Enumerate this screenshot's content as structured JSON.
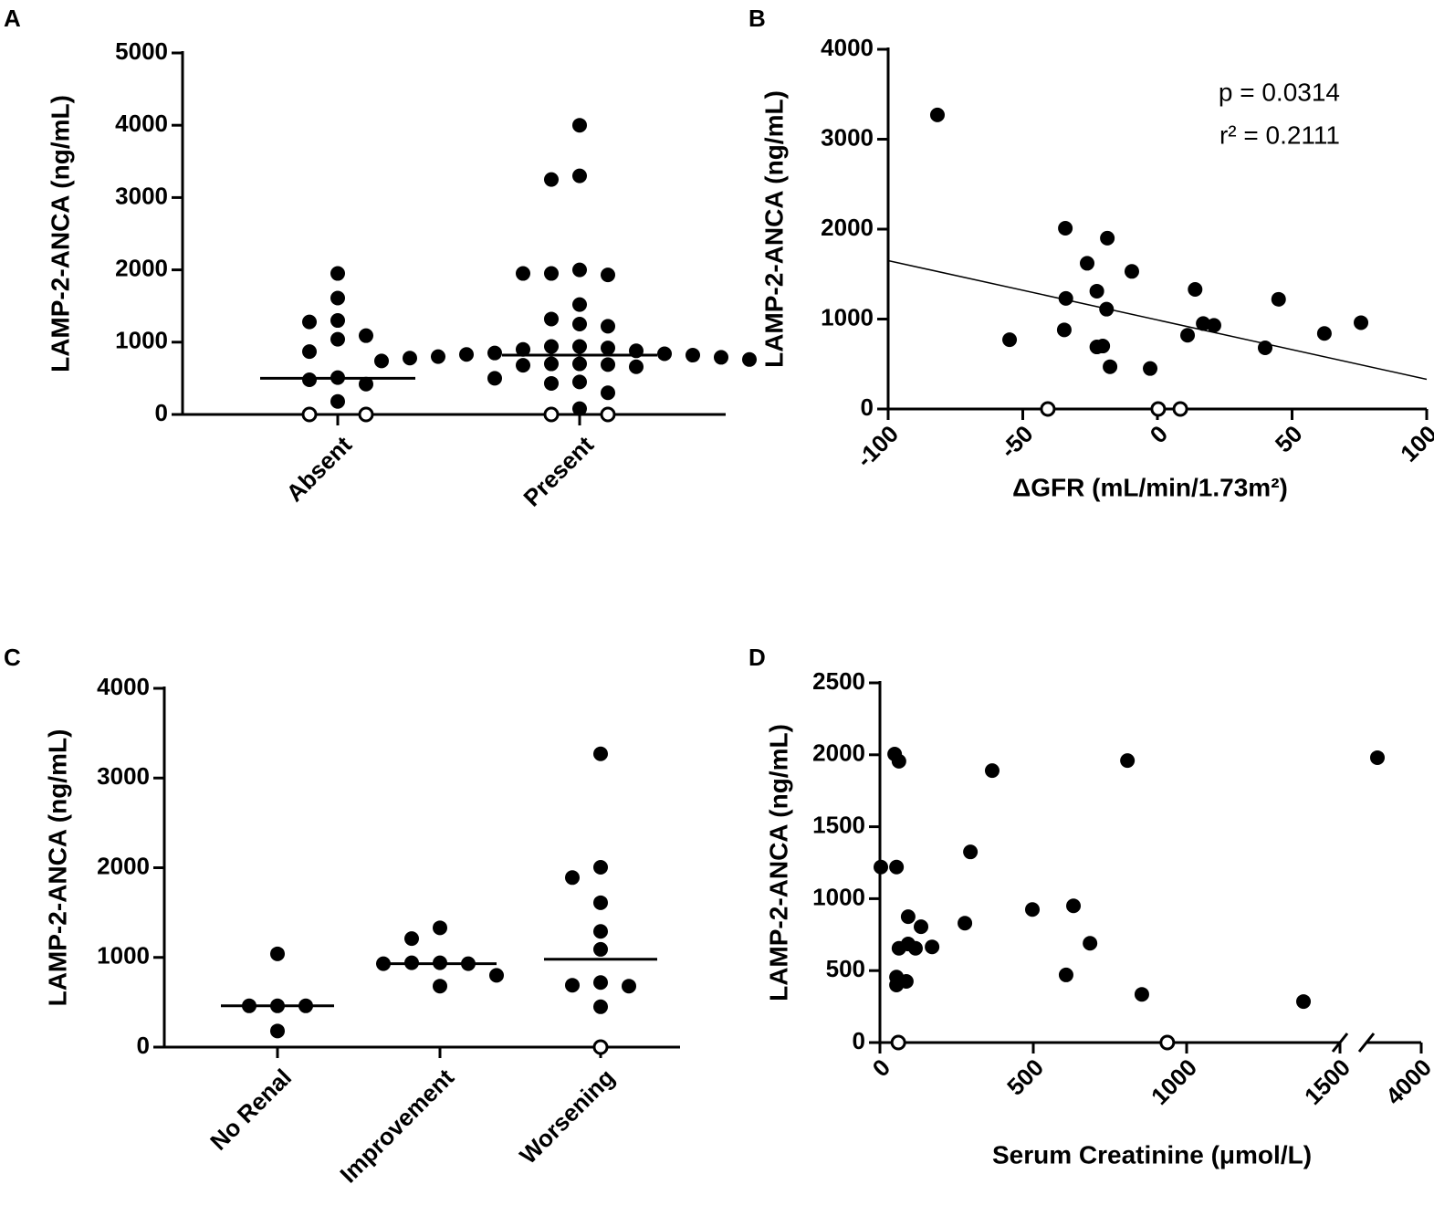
{
  "chart_data": [
    {
      "panel": "A",
      "type": "dot",
      "ylabel": "LAMP-2-ANCA (ng/mL)",
      "ylim": [
        0,
        5000
      ],
      "yticks": [
        0,
        1000,
        2000,
        3000,
        4000,
        5000
      ],
      "categories": [
        "Absent",
        "Present"
      ],
      "filled_values": [
        [
          1950,
          1610,
          1300,
          1280,
          1090,
          1040,
          870,
          510,
          480,
          420,
          180
        ],
        [
          4000,
          3300,
          3250,
          2000,
          1950,
          1930,
          1950,
          1520,
          1320,
          1250,
          1220,
          940,
          940,
          920,
          900,
          880,
          850,
          840,
          830,
          820,
          800,
          790,
          780,
          760,
          740,
          700,
          700,
          690,
          680,
          660,
          500,
          450,
          430,
          300,
          80
        ]
      ],
      "open_values": [
        [
          0,
          0
        ],
        [
          0,
          0
        ]
      ],
      "medians": [
        500,
        820
      ]
    },
    {
      "panel": "B",
      "type": "scatter",
      "ylabel": "LAMP-2-ANCA (ng/mL)",
      "xlabel": "ΔGFR (mL/min/1.73m²)",
      "ylim": [
        0,
        4000
      ],
      "yticks": [
        0,
        1000,
        2000,
        3000,
        4000
      ],
      "x_segments": [
        {
          "xlim": [
            -100,
            100
          ],
          "xticks": [
            -100,
            -50,
            0,
            50,
            100
          ]
        }
      ],
      "x": [
        -81.7,
        -34.2,
        -18.6,
        -26.1,
        -9.5,
        -34,
        -22.5,
        14,
        -18.9,
        -54.9,
        -34.6,
        -22.5,
        -20.3,
        -17.6,
        -2.7,
        11.2,
        17,
        21,
        45,
        40,
        62,
        75.6
      ],
      "values": [
        3270,
        2010,
        1900,
        1620,
        1530,
        1230,
        1310,
        1330,
        1110,
        770,
        880,
        690,
        700,
        470,
        450,
        820,
        950,
        930,
        1220,
        680,
        840,
        960
      ],
      "open_x": [
        -40.7,
        0.3,
        8.5
      ],
      "open_values": [
        0,
        0,
        0
      ],
      "fit": {
        "x": [
          -100,
          100
        ],
        "values": [
          1650,
          330
        ]
      },
      "annotations": [
        "p = 0.0314",
        "r² = 0.2111"
      ]
    },
    {
      "panel": "C",
      "type": "dot",
      "ylabel": "LAMP-2-ANCA (ng/mL)",
      "ylim": [
        0,
        4000
      ],
      "yticks": [
        0,
        1000,
        2000,
        3000,
        4000
      ],
      "categories": [
        "No Renal",
        "Improvement",
        "Worsening"
      ],
      "filled_values": [
        [
          1040,
          460,
          460,
          460,
          180
        ],
        [
          1330,
          1210,
          940,
          940,
          930,
          930,
          800,
          680
        ],
        [
          3270,
          2005,
          1890,
          1610,
          1290,
          1090,
          720,
          690,
          680,
          450
        ]
      ],
      "open_values": [
        [],
        [],
        [
          0
        ]
      ],
      "medians": [
        460,
        930,
        980
      ]
    },
    {
      "panel": "D",
      "type": "scatter",
      "ylabel": "LAMP-2-ANCA (ng/mL)",
      "xlabel": "Serum Creatinine (μmol/L)",
      "ylim": [
        0,
        2500
      ],
      "yticks": [
        0,
        500,
        1000,
        1500,
        2000,
        2500
      ],
      "x_segments": [
        {
          "xlim": [
            0,
            1500
          ],
          "xticks": [
            0,
            500,
            1000,
            1500
          ]
        },
        {
          "xlim": [
            3800,
            4000
          ],
          "xticks": [
            4000
          ]
        }
      ],
      "x": [
        3,
        48,
        62,
        54,
        366,
        807,
        295,
        497,
        631,
        92,
        134,
        277,
        170,
        92,
        116,
        62,
        685,
        54,
        54,
        86,
        607,
        854,
        1381,
        3840
      ],
      "values": [
        1220,
        2005,
        1955,
        1220,
        1890,
        1960,
        1325,
        925,
        950,
        875,
        805,
        830,
        665,
        685,
        655,
        655,
        690,
        455,
        400,
        425,
        470,
        335,
        285,
        1980
      ],
      "open_x": [
        60,
        937
      ],
      "open_values": [
        0,
        0
      ]
    }
  ]
}
